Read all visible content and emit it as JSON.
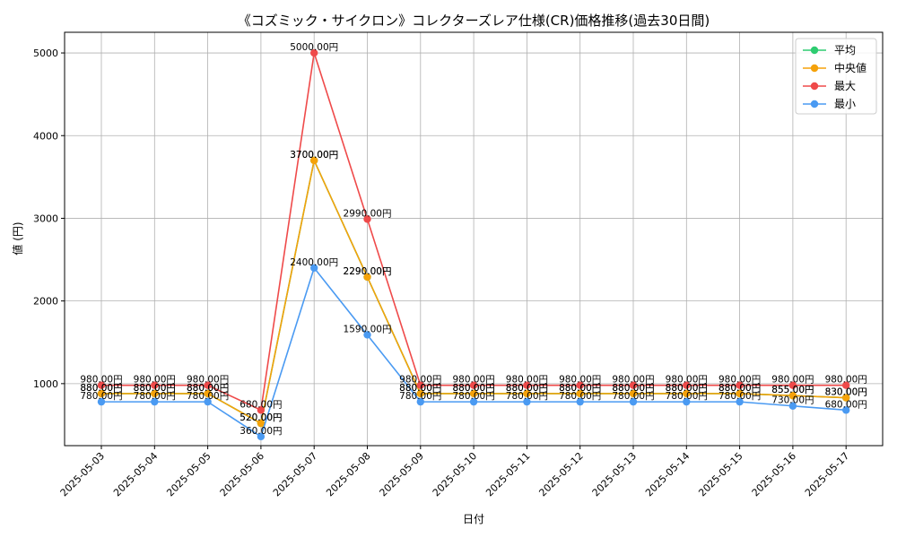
{
  "chart_data": {
    "type": "line",
    "title": "《コズミック・サイクロン》コレクターズレア仕様(CR)価格推移(過去30日間)",
    "xlabel": "日付",
    "ylabel": "値 (円)",
    "categories": [
      "2025-05-03",
      "2025-05-04",
      "2025-05-05",
      "2025-05-06",
      "2025-05-07",
      "2025-05-08",
      "2025-05-09",
      "2025-05-10",
      "2025-05-11",
      "2025-05-12",
      "2025-05-13",
      "2025-05-14",
      "2025-05-15",
      "2025-05-16",
      "2025-05-17"
    ],
    "ylim": [
      250,
      5250
    ],
    "yticks": [
      1000,
      2000,
      3000,
      4000,
      5000
    ],
    "grid": true,
    "legend_position": "top-right",
    "value_suffix": "円",
    "series": [
      {
        "name": "平均",
        "color": "#2ecc71",
        "values": [
          880,
          880,
          880,
          520,
          3700,
          2290,
          880,
          880,
          880,
          880,
          880,
          880,
          880,
          855,
          830
        ]
      },
      {
        "name": "中央値",
        "color": "#f5a20a",
        "values": [
          880,
          880,
          880,
          520,
          3700,
          2290,
          880,
          880,
          880,
          880,
          880,
          880,
          880,
          855,
          830
        ]
      },
      {
        "name": "最大",
        "color": "#ef4a4a",
        "values": [
          980,
          980,
          980,
          680,
          5000,
          2990,
          980,
          980,
          980,
          980,
          980,
          980,
          980,
          980,
          980
        ]
      },
      {
        "name": "最小",
        "color": "#4a9af2",
        "values": [
          780,
          780,
          780,
          360,
          2400,
          1590,
          780,
          780,
          780,
          780,
          780,
          780,
          780,
          730,
          680
        ]
      }
    ]
  }
}
